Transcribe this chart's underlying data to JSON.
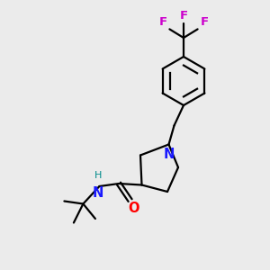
{
  "background_color": "#ebebeb",
  "atom_colors": {
    "C": "#000000",
    "N": "#1a1aff",
    "O": "#ff0000",
    "F": "#cc00cc",
    "H": "#008b8b"
  },
  "figsize": [
    3.0,
    3.0
  ],
  "dpi": 100
}
